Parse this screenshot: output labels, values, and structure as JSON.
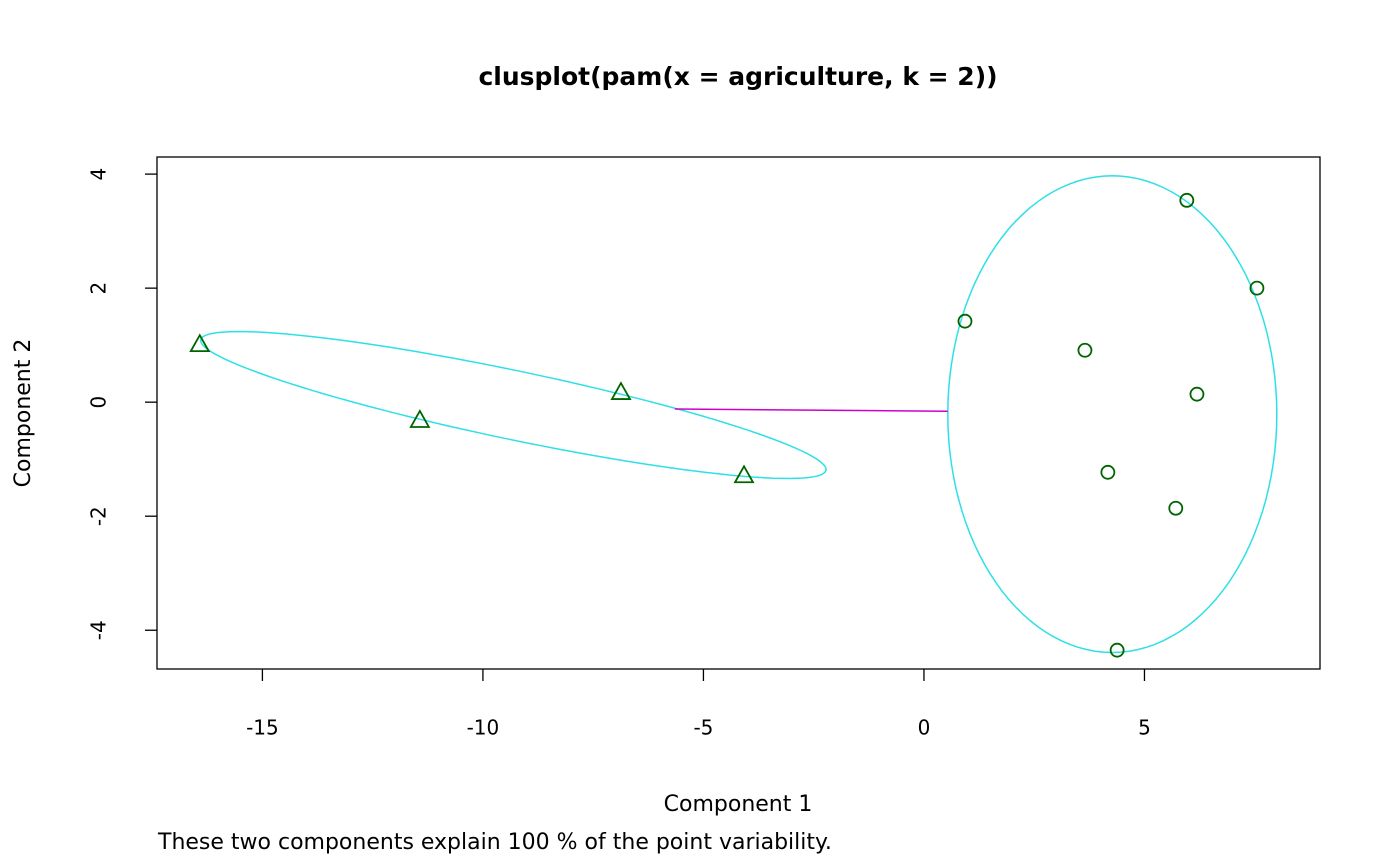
{
  "chart_data": {
    "type": "scatter",
    "title": "clusplot(pam(x = agriculture, k = 2))",
    "x_label": "Component 1",
    "y_label": "Component 2",
    "subtitle": "These two components explain 100 % of the point variability.",
    "xlim": [
      -17.39,
      8.98
    ],
    "ylim": [
      -4.68,
      4.3
    ],
    "xticks": [
      -15,
      -10,
      -5,
      0,
      5
    ],
    "yticks": [
      -4,
      -2,
      0,
      2,
      4
    ],
    "series": [
      {
        "marker": "triangle",
        "color": "#006400",
        "x": [
          -16.42,
          -11.43,
          -6.87,
          -4.08
        ],
        "values": [
          1.0,
          -0.33,
          0.16,
          -1.3
        ]
      },
      {
        "marker": "circle",
        "color": "#006400",
        "x": [
          0.93,
          5.96,
          7.55,
          3.65,
          6.19,
          4.17,
          5.71,
          4.38
        ],
        "values": [
          1.42,
          3.54,
          2.0,
          0.91,
          0.14,
          -1.23,
          -1.86,
          -4.35
        ]
      }
    ],
    "ellipses": [
      {
        "color": "#2ee0e6",
        "center": [
          -9.31,
          -0.05
        ],
        "u": [
          7.09,
          -1.14
        ],
        "v": [
          0.1,
          0.6
        ]
      },
      {
        "color": "#2ee0e6",
        "center": [
          4.27,
          -0.21
        ],
        "u": [
          3.73,
          0
        ],
        "v": [
          0,
          4.18
        ]
      }
    ],
    "segments": [
      {
        "color": "#cc00cc",
        "from": [
          -5.65,
          -0.12
        ],
        "to": [
          0.54,
          -0.16
        ]
      }
    ]
  }
}
